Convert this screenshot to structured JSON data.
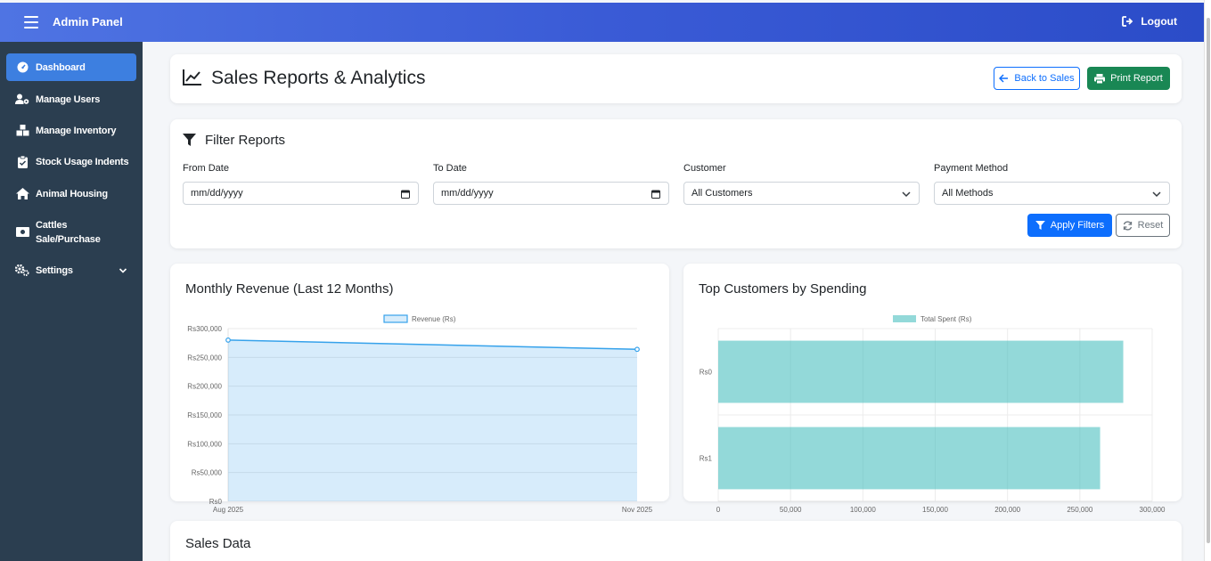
{
  "topbar": {
    "brand": "Admin Panel",
    "logout_label": "Logout"
  },
  "sidebar": {
    "items": [
      {
        "label": "Dashboard",
        "icon": "gauge-icon",
        "active": true
      },
      {
        "label": "Manage Users",
        "icon": "users-cog-icon"
      },
      {
        "label": "Manage Inventory",
        "icon": "boxes-icon"
      },
      {
        "label": "Stock Usage Indents",
        "icon": "clipboard-check-icon"
      },
      {
        "label": "Animal Housing",
        "icon": "home-icon"
      },
      {
        "label": "Cattles Sale/Purchase",
        "label_line1": "Cattles",
        "label_line2": "Sale/Purchase",
        "icon": "money-bill-icon"
      },
      {
        "label": "Settings",
        "icon": "cogs-icon",
        "has_submenu": true
      }
    ]
  },
  "header": {
    "title": "Sales Reports & Analytics",
    "back_label": "Back to Sales",
    "print_label": "Print Report"
  },
  "filters": {
    "title": "Filter Reports",
    "from_label": "From Date",
    "from_placeholder": "mm/dd/yyyy",
    "to_label": "To Date",
    "to_placeholder": "mm/dd/yyyy",
    "customer_label": "Customer",
    "customer_value": "All Customers",
    "payment_label": "Payment Method",
    "payment_value": "All Methods",
    "apply_label": "Apply Filters",
    "reset_label": "Reset"
  },
  "revenue_card": {
    "title": "Monthly Revenue (Last 12 Months)"
  },
  "customers_card": {
    "title": "Top Customers by Spending"
  },
  "sales_data": {
    "title": "Sales Data"
  },
  "colors": {
    "topbar_start": "#4f74e3",
    "topbar_end": "#2b4cc8",
    "sidebar_bg": "#2b3e50",
    "active_item": "#3d7fe0",
    "primary": "#0d6efd",
    "success": "#198754",
    "line_series": "#36a2eb",
    "bar_series": "#4bc0c0"
  },
  "chart_data": [
    {
      "type": "area",
      "title": "Monthly Revenue (Last 12 Months)",
      "legend": "top",
      "series": [
        {
          "name": "Revenue (Rs)",
          "values": [
            280000,
            264000
          ]
        }
      ],
      "categories": [
        "Aug 2025",
        "Nov 2025"
      ],
      "y_ticks": [
        "Rs300,000",
        "Rs250,000",
        "Rs200,000",
        "Rs150,000",
        "Rs100,000",
        "Rs50,000",
        "Rs0"
      ],
      "ylim": [
        0,
        300000
      ],
      "grid": true
    },
    {
      "type": "bar",
      "orientation": "horizontal",
      "title": "Top Customers by Spending",
      "legend": "top",
      "categories": [
        "Rs0",
        "Rs1"
      ],
      "series": [
        {
          "name": "Total Spent (Rs)",
          "values": [
            280000,
            264000
          ]
        }
      ],
      "x_ticks": [
        "0",
        "50,000",
        "100,000",
        "150,000",
        "200,000",
        "250,000",
        "300,000"
      ],
      "xlim": [
        0,
        300000
      ],
      "grid": true
    }
  ]
}
